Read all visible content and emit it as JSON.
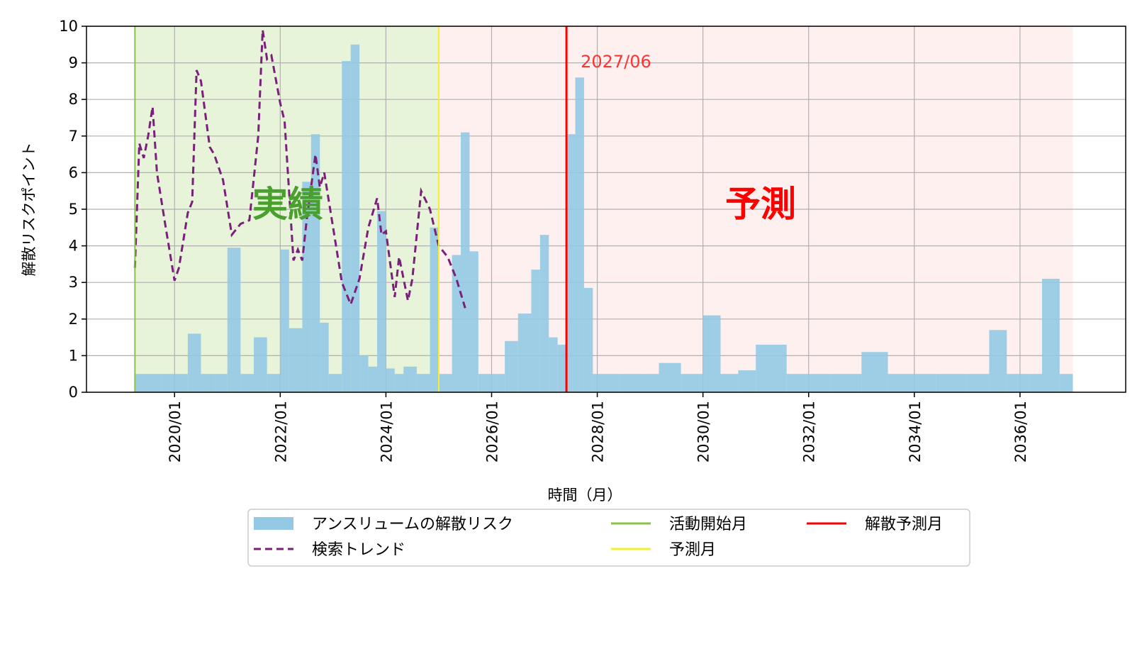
{
  "chart_data": {
    "type": "bar",
    "xlabel": "時間（月）",
    "ylabel": "解散リスクポイント",
    "ylim": [
      0,
      10
    ],
    "yticks": [
      "0",
      "1",
      "2",
      "3",
      "4",
      "5",
      "6",
      "7",
      "8",
      "9",
      "10"
    ],
    "xlim": [
      "2018-05",
      "2038-01"
    ],
    "xticks": [
      "2020/01",
      "2022/01",
      "2024/01",
      "2026/01",
      "2028/01",
      "2030/01",
      "2032/01",
      "2034/01",
      "2036/01"
    ],
    "grid": true,
    "legend_position": "bottom-center",
    "regions": [
      {
        "label": "実績",
        "start": "2019-04",
        "end": "2025-01",
        "color": "#e8f4da",
        "label_color": "#4aa02c"
      },
      {
        "label": "予測",
        "start": "2025-01",
        "end": "2037-01",
        "color": "#fff0f0",
        "label_color": "#ff0000"
      }
    ],
    "annotations": [
      {
        "text": "2027/06",
        "x": "2027-06",
        "color": "#ff3333"
      }
    ],
    "vlines": [
      {
        "name": "活動開始月",
        "x": "2019-04",
        "color": "#8bc34a"
      },
      {
        "name": "予測月",
        "x": "2025-01",
        "color": "#f5ef30"
      },
      {
        "name": "解散予測月",
        "x": "2027-06",
        "color": "#ff0000"
      }
    ],
    "series": [
      {
        "name": "アンスリュームの解散リスク",
        "kind": "bar",
        "color": "#93c9e4",
        "data": [
          [
            "2019-04",
            0.5
          ],
          [
            "2019-07",
            0.5
          ],
          [
            "2019-10",
            0.5
          ],
          [
            "2020-01",
            0.5
          ],
          [
            "2020-04",
            1.6
          ],
          [
            "2020-07",
            0.5
          ],
          [
            "2020-10",
            0.5
          ],
          [
            "2021-01",
            3.95
          ],
          [
            "2021-04",
            0.5
          ],
          [
            "2021-07",
            1.5
          ],
          [
            "2021-10",
            0.5
          ],
          [
            "2022-01",
            3.9
          ],
          [
            "2022-03",
            1.75
          ],
          [
            "2022-06",
            5.75
          ],
          [
            "2022-08",
            7.05
          ],
          [
            "2022-10",
            1.9
          ],
          [
            "2022-12",
            0.5
          ],
          [
            "2023-03",
            9.05
          ],
          [
            "2023-05",
            9.5
          ],
          [
            "2023-07",
            1.0
          ],
          [
            "2023-09",
            0.7
          ],
          [
            "2023-11",
            4.95
          ],
          [
            "2024-01",
            0.65
          ],
          [
            "2024-03",
            0.5
          ],
          [
            "2024-05",
            0.7
          ],
          [
            "2024-08",
            0.5
          ],
          [
            "2024-11",
            4.5
          ],
          [
            "2025-01",
            0.5
          ],
          [
            "2025-04",
            3.75
          ],
          [
            "2025-06",
            7.1
          ],
          [
            "2025-08",
            3.85
          ],
          [
            "2025-10",
            0.5
          ],
          [
            "2026-02",
            0.5
          ],
          [
            "2026-04",
            1.4
          ],
          [
            "2026-07",
            2.15
          ],
          [
            "2026-10",
            3.35
          ],
          [
            "2026-12",
            4.3
          ],
          [
            "2027-02",
            1.5
          ],
          [
            "2027-04",
            1.3
          ],
          [
            "2027-06",
            7.05
          ],
          [
            "2027-08",
            8.6
          ],
          [
            "2027-10",
            2.85
          ],
          [
            "2027-12",
            0.5
          ],
          [
            "2028-06",
            0.5
          ],
          [
            "2028-12",
            0.5
          ],
          [
            "2029-03",
            0.8
          ],
          [
            "2029-08",
            0.5
          ],
          [
            "2030-01",
            2.1
          ],
          [
            "2030-05",
            0.5
          ],
          [
            "2030-09",
            0.6
          ],
          [
            "2031-01",
            1.3
          ],
          [
            "2031-08",
            0.5
          ],
          [
            "2032-06",
            0.5
          ],
          [
            "2033-01",
            1.1
          ],
          [
            "2033-07",
            0.5
          ],
          [
            "2034-06",
            0.5
          ],
          [
            "2035-01",
            0.5
          ],
          [
            "2035-06",
            1.7
          ],
          [
            "2035-10",
            0.5
          ],
          [
            "2036-03",
            0.5
          ],
          [
            "2036-06",
            3.1
          ],
          [
            "2036-10",
            0.5
          ]
        ]
      },
      {
        "name": "検索トレンド",
        "kind": "line",
        "color": "#7a1f7a",
        "data": [
          [
            "2019-04",
            3.4
          ],
          [
            "2019-05",
            6.8
          ],
          [
            "2019-06",
            6.4
          ],
          [
            "2019-07",
            7.0
          ],
          [
            "2019-08",
            7.8
          ],
          [
            "2019-09",
            6.0
          ],
          [
            "2019-11",
            4.5
          ],
          [
            "2020-01",
            3.05
          ],
          [
            "2020-02",
            3.4
          ],
          [
            "2020-04",
            4.9
          ],
          [
            "2020-05",
            5.2
          ],
          [
            "2020-06",
            8.8
          ],
          [
            "2020-07",
            8.5
          ],
          [
            "2020-09",
            6.7
          ],
          [
            "2020-10",
            6.5
          ],
          [
            "2020-12",
            5.8
          ],
          [
            "2021-02",
            4.3
          ],
          [
            "2021-04",
            4.6
          ],
          [
            "2021-06",
            4.7
          ],
          [
            "2021-08",
            7.0
          ],
          [
            "2021-09",
            9.9
          ],
          [
            "2021-10",
            9.1
          ],
          [
            "2021-11",
            9.2
          ],
          [
            "2022-01",
            7.9
          ],
          [
            "2022-02",
            7.4
          ],
          [
            "2022-04",
            3.6
          ],
          [
            "2022-05",
            3.9
          ],
          [
            "2022-06",
            3.6
          ],
          [
            "2022-07",
            4.7
          ],
          [
            "2022-09",
            6.5
          ],
          [
            "2022-10",
            5.6
          ],
          [
            "2022-11",
            6.0
          ],
          [
            "2023-01",
            4.5
          ],
          [
            "2023-03",
            3.0
          ],
          [
            "2023-05",
            2.4
          ],
          [
            "2023-07",
            3.1
          ],
          [
            "2023-09",
            4.5
          ],
          [
            "2023-11",
            5.3
          ],
          [
            "2023-12",
            4.3
          ],
          [
            "2024-01",
            4.4
          ],
          [
            "2024-03",
            2.6
          ],
          [
            "2024-04",
            3.7
          ],
          [
            "2024-06",
            2.5
          ],
          [
            "2024-07",
            3.1
          ],
          [
            "2024-09",
            5.5
          ],
          [
            "2024-11",
            5.0
          ],
          [
            "2025-01",
            4.0
          ],
          [
            "2025-03",
            3.7
          ],
          [
            "2025-05",
            3.1
          ],
          [
            "2025-07",
            2.3
          ]
        ]
      }
    ]
  },
  "legend": {
    "items": [
      {
        "label": "アンスリュームの解散リスク",
        "kind": "patch",
        "color": "#93c9e4"
      },
      {
        "label": "検索トレンド",
        "kind": "dashed",
        "color": "#7a1f7a"
      },
      {
        "label": "活動開始月",
        "kind": "line",
        "color": "#8bc34a"
      },
      {
        "label": "予測月",
        "kind": "line",
        "color": "#f5ef30"
      },
      {
        "label": "解散予測月",
        "kind": "line",
        "color": "#ff0000"
      }
    ]
  }
}
